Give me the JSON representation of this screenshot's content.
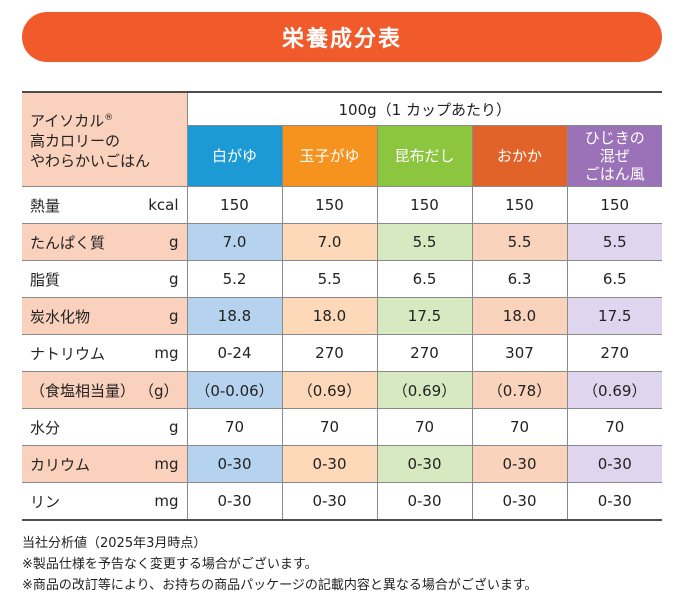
{
  "title": "栄養成分表",
  "colors": {
    "banner": "#f15a2a",
    "header_bg": "#fad1bd",
    "shade_even": "#fad1bd",
    "flavor_tints": [
      "#b5d3ee",
      "#fdd8b9",
      "#d7e9c0",
      "#fad3bd",
      "#dfd5ee"
    ]
  },
  "table": {
    "product_name": [
      "アイソカル",
      "高カロリーの",
      "やわらかいごはん"
    ],
    "registered_mark": "®",
    "serving": "100g（1 カップあたり）",
    "flavors": [
      {
        "lines": [
          "白がゆ"
        ],
        "color": "#1c9ad6"
      },
      {
        "lines": [
          "玉子がゆ"
        ],
        "color": "#f6921e"
      },
      {
        "lines": [
          "昆布だし"
        ],
        "color": "#8cc63f"
      },
      {
        "lines": [
          "おかか"
        ],
        "color": "#e2632a"
      },
      {
        "lines": [
          "ひじきの",
          "混ぜ",
          "ごはん風"
        ],
        "color": "#9b72b8"
      }
    ],
    "rows": [
      {
        "name": "熱量",
        "unit": "kcal",
        "values": [
          "150",
          "150",
          "150",
          "150",
          "150"
        ]
      },
      {
        "name": "たんぱく質",
        "unit": "g",
        "values": [
          "7.0",
          "7.0",
          "5.5",
          "5.5",
          "5.5"
        ]
      },
      {
        "name": "脂質",
        "unit": "g",
        "values": [
          "5.2",
          "5.5",
          "6.5",
          "6.3",
          "6.5"
        ]
      },
      {
        "name": "炭水化物",
        "unit": "g",
        "values": [
          "18.8",
          "18.0",
          "17.5",
          "18.0",
          "17.5"
        ]
      },
      {
        "name": "ナトリウム",
        "unit": "mg",
        "values": [
          "0-24",
          "270",
          "270",
          "307",
          "270"
        ]
      },
      {
        "name": "（食塩相当量）",
        "unit": "（g）",
        "values": [
          "（0-0.06）",
          "（0.69）",
          "（0.69）",
          "（0.78）",
          "（0.69）"
        ]
      },
      {
        "name": "水分",
        "unit": "g",
        "values": [
          "70",
          "70",
          "70",
          "70",
          "70"
        ]
      },
      {
        "name": "カリウム",
        "unit": "mg",
        "values": [
          "0-30",
          "0-30",
          "0-30",
          "0-30",
          "0-30"
        ]
      },
      {
        "name": "リン",
        "unit": "mg",
        "values": [
          "0-30",
          "0-30",
          "0-30",
          "0-30",
          "0-30"
        ]
      }
    ]
  },
  "notes": [
    "当社分析値（2025年3月時点）",
    "※製品仕様を予告なく変更する場合がございます。",
    "※商品の改訂等により、お持ちの商品パッケージの記載内容と異なる場合がございます。"
  ]
}
